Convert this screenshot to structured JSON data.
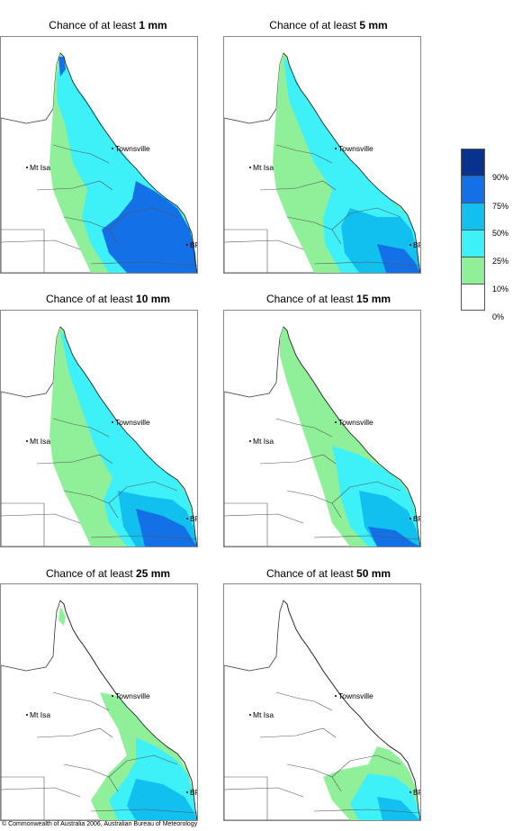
{
  "panels": [
    {
      "prefix": "Chance of at least ",
      "amount": "1 mm"
    },
    {
      "prefix": "Chance of at least ",
      "amount": "5 mm"
    },
    {
      "prefix": "Chance of at least ",
      "amount": "10 mm"
    },
    {
      "prefix": "Chance of at least ",
      "amount": "15 mm"
    },
    {
      "prefix": "Chance of at least ",
      "amount": "25 mm"
    },
    {
      "prefix": "Chance of at least ",
      "amount": "50 mm"
    }
  ],
  "places": {
    "townsville": "Townsville",
    "mt_isa": "Mt Isa",
    "bris": "BRIS"
  },
  "legend": {
    "colors": [
      "#08328c",
      "#1470e6",
      "#12c0f0",
      "#3ef0f8",
      "#90f09a",
      "#ffffff"
    ],
    "labels": [
      "90%",
      "75%",
      "50%",
      "25%",
      "10%",
      "0%"
    ]
  },
  "footer": "© Commonwealth of Australia 2006, Australian Bureau of Meteorology"
}
